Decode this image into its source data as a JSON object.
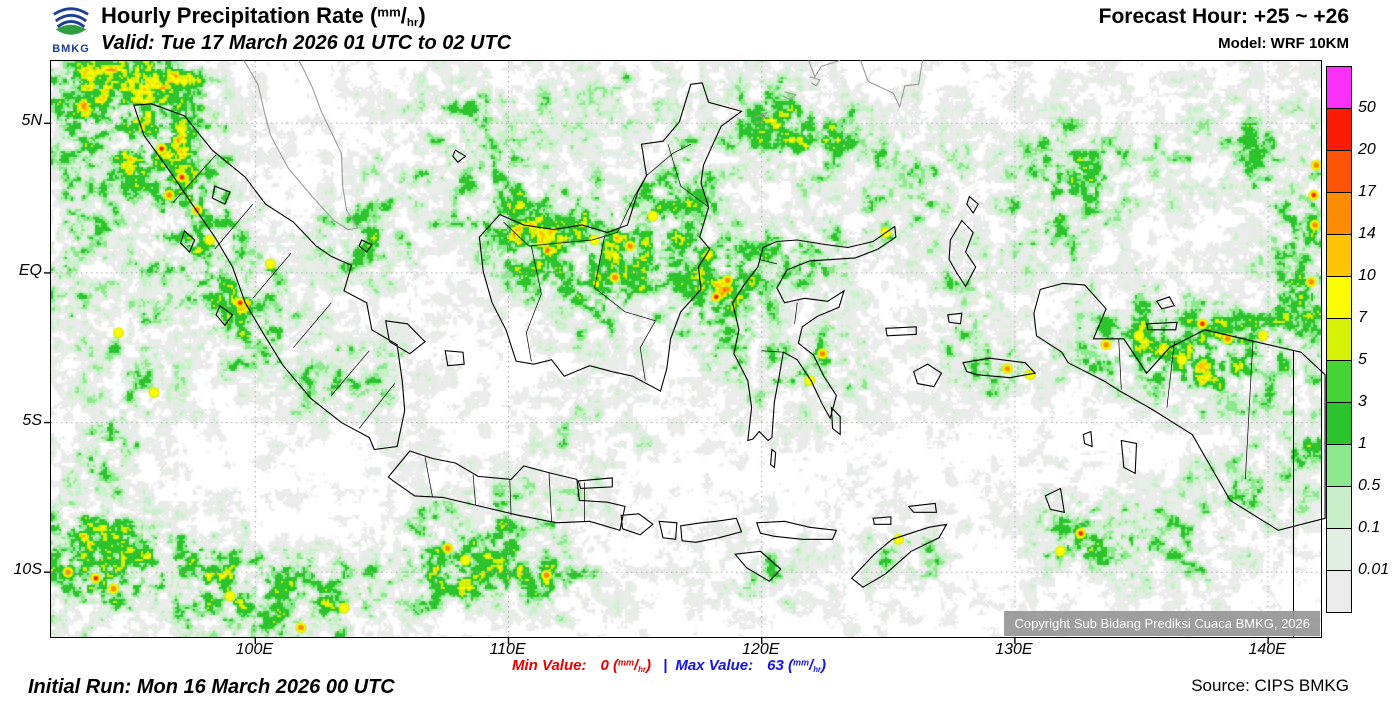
{
  "header": {
    "logo": "BMKG",
    "title": "Hourly Precipitation Rate",
    "unit_open": "(",
    "unit_num": "mm",
    "unit_slash": "/",
    "unit_den": "hr",
    "unit_close": ")",
    "valid": "Valid: Tue 17 March 2026 01 UTC to 02 UTC",
    "forecast_hour": "Forecast Hour: +25 ~ +26",
    "model": "Model: WRF 10KM"
  },
  "map": {
    "lat_labels": [
      "5N",
      "EQ",
      "5S",
      "10S"
    ],
    "lon_labels": [
      "100E",
      "110E",
      "120E",
      "130E",
      "140E"
    ],
    "copyright": "Copyright Sub Bidang Prediksi Cuaca BMKG, 2026"
  },
  "legend": {
    "labels": [
      "50",
      "20",
      "17",
      "14",
      "10",
      "7",
      "5",
      "3",
      "1",
      "0.5",
      "0.1",
      "0.01"
    ],
    "colors": [
      "#f830f8",
      "#fc1c04",
      "#fc5404",
      "#fc8c04",
      "#fcc404",
      "#fcfc04",
      "#d4f004",
      "#44d434",
      "#2cc42c",
      "#8ce88c",
      "#c8f0c8",
      "#e2eee2",
      "#ebebeb"
    ]
  },
  "footer": {
    "initial_run": "Initial Run: Mon 16 March 2026 00 UTC",
    "min_label": "Min Value:",
    "min_value": "0",
    "separator": "|",
    "max_label": "Max Value:",
    "max_value": "63",
    "min_color": "#e80000",
    "max_color": "#1414e8",
    "source": "Source: CIPS BMKG"
  }
}
